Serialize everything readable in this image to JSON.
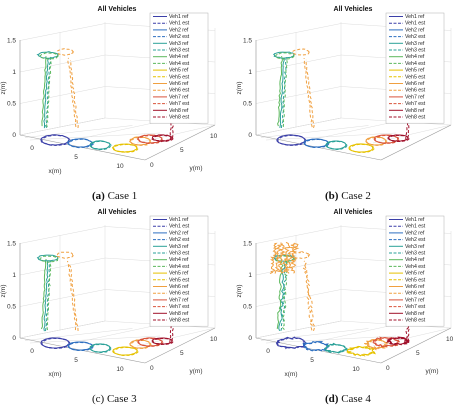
{
  "figure": {
    "panels": [
      {
        "title": "All Vehicles",
        "caption_letter": "(a)",
        "caption_text": "Case 1",
        "caption_bold": true,
        "variant": "case1"
      },
      {
        "title": "All Vehicles",
        "caption_letter": "(b)",
        "caption_text": "Case 2",
        "caption_bold": true,
        "variant": "case2"
      },
      {
        "title": "All Vehicles",
        "caption_letter": "(c)",
        "caption_text": "Case 3",
        "caption_bold": false,
        "variant": "case3"
      },
      {
        "title": "All Vehicles",
        "caption_letter": "(d)",
        "caption_text": "Case 4",
        "caption_bold": true,
        "variant": "case4"
      }
    ]
  },
  "chart_data": [
    {
      "type": "line",
      "projection": "3d",
      "title": "All Vehicles",
      "xlabel": "x(m)",
      "ylabel": "y(m)",
      "zlabel": "z(m)",
      "xticks": [
        "0",
        "5",
        "10"
      ],
      "yticks": [
        "0",
        "5",
        "10"
      ],
      "zticks": [
        "0",
        "0.5",
        "1",
        "1.5"
      ],
      "xlim": [
        0,
        10
      ],
      "ylim": [
        0,
        10
      ],
      "zlim": [
        0,
        1.5
      ],
      "grid": true,
      "legend_position": "top-right",
      "series": [
        {
          "name": "Veh1 ref",
          "color": "#3b3fa8",
          "dash": "solid"
        },
        {
          "name": "Veh1 est",
          "color": "#3b3fa8",
          "dash": "dashed"
        },
        {
          "name": "Veh2 ref",
          "color": "#2d6fc0",
          "dash": "solid"
        },
        {
          "name": "Veh2 est",
          "color": "#2d6fc0",
          "dash": "dashed"
        },
        {
          "name": "Veh3 ref",
          "color": "#2aa198",
          "dash": "solid"
        },
        {
          "name": "Veh3 est",
          "color": "#2aa198",
          "dash": "dashed"
        },
        {
          "name": "Veh4 ref",
          "color": "#5cb85c",
          "dash": "solid"
        },
        {
          "name": "Veh4 est",
          "color": "#5cb85c",
          "dash": "dashed"
        },
        {
          "name": "Veh5 ref",
          "color": "#e6c200",
          "dash": "solid"
        },
        {
          "name": "Veh5 est",
          "color": "#e6c200",
          "dash": "dashed"
        },
        {
          "name": "Veh6 ref",
          "color": "#f0a040",
          "dash": "solid"
        },
        {
          "name": "Veh6 est",
          "color": "#f0a040",
          "dash": "dashed"
        },
        {
          "name": "Veh7 ref",
          "color": "#d9543b",
          "dash": "solid"
        },
        {
          "name": "Veh7 est",
          "color": "#d9543b",
          "dash": "dashed"
        },
        {
          "name": "Veh8 ref",
          "color": "#a0102a",
          "dash": "solid"
        },
        {
          "name": "Veh8 est",
          "color": "#a0102a",
          "dash": "dashed"
        }
      ]
    },
    {
      "type": "line",
      "projection": "3d",
      "title": "All Vehicles",
      "xlabel": "",
      "ylabel": "",
      "zlabel": "z(m)",
      "xticks": [],
      "yticks": [],
      "zticks": [
        "0",
        "0.5",
        "1",
        "1.5"
      ],
      "zlim": [
        0,
        1.5
      ],
      "grid": true,
      "legend_position": "top-right",
      "series_ref": 0
    },
    {
      "type": "line",
      "projection": "3d",
      "title": "All Vehicles",
      "xlabel": "x(m)",
      "ylabel": "y(m)",
      "zlabel": "z(m)",
      "xticks": [
        "0",
        "5",
        "10"
      ],
      "yticks": [
        "0",
        "5",
        "10"
      ],
      "zticks": [
        "0",
        "0.5",
        "1",
        "1.5"
      ],
      "xlim": [
        0,
        10
      ],
      "ylim": [
        0,
        10
      ],
      "zlim": [
        0,
        1.5
      ],
      "grid": true,
      "legend_position": "top-right",
      "series_ref": 0
    },
    {
      "type": "line",
      "projection": "3d",
      "title": "All Vehicles",
      "xlabel": "x(m)",
      "ylabel": "y(m)",
      "zlabel": "z(m)",
      "xticks": [
        "0",
        "5",
        "10"
      ],
      "yticks": [
        "0",
        "5",
        "10"
      ],
      "zticks": [
        "0",
        "0.5",
        "1",
        "1.5"
      ],
      "xlim": [
        0,
        10
      ],
      "ylim": [
        0,
        10
      ],
      "zlim": [
        0,
        1.5
      ],
      "grid": true,
      "legend_position": "top-right",
      "series_ref": 0
    }
  ]
}
